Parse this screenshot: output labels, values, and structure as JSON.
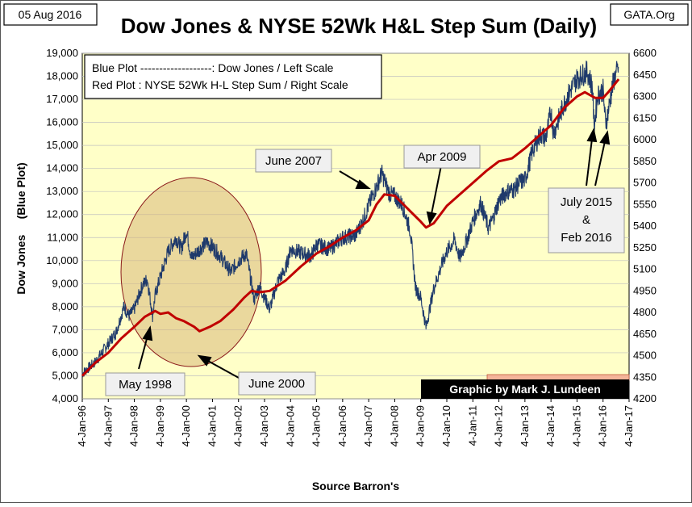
{
  "header": {
    "date": "05 Aug 2016",
    "title": "Dow Jones & NYSE 52Wk H&L Step Sum (Daily)",
    "source_site": "GATA.Org"
  },
  "legend": {
    "line1": "Blue Plot -------------------:  Dow Jones / Left Scale",
    "line2": "Red Plot : NYSE 52Wk H-L Step Sum / Right Scale"
  },
  "credit": "Graphic by Mark J. Lundeen",
  "annotations": {
    "may1998": "May 1998",
    "june2000": "June 2000",
    "june2007": "June 2007",
    "apr2009": "Apr 2009",
    "july2015_l1": "July 2015",
    "july2015_l2": "&",
    "july2015_l3": "Feb 2016"
  },
  "colors": {
    "plot_bg": "#ffffc8",
    "grid": "#c0c0c0",
    "dow_blue": "#1f3a6b",
    "step_red": "#c00000",
    "circle_fill": "#d8b87a",
    "credit_bg": "#000000",
    "credit_text": "#ffffff"
  },
  "chart_data": {
    "type": "line",
    "xlabel": "Source Barron's",
    "ylabel": "Dow Jones     (Blue Plot)",
    "ylim": [
      4000,
      19000
    ],
    "y2lim": [
      4200,
      6600
    ],
    "x_range": [
      "1996-01-04",
      "2017-01-04"
    ],
    "grid": true,
    "legend_position": "top-left",
    "y_ticks": [
      "4,000",
      "5,000",
      "6,000",
      "7,000",
      "8,000",
      "9,000",
      "10,000",
      "11,000",
      "12,000",
      "13,000",
      "14,000",
      "15,000",
      "16,000",
      "17,000",
      "18,000",
      "19,000"
    ],
    "y2_ticks": [
      "4200",
      "4350",
      "4500",
      "4650",
      "4800",
      "4950",
      "5100",
      "5250",
      "5400",
      "5550",
      "5700",
      "5850",
      "6000",
      "6150",
      "6300",
      "6450",
      "6600"
    ],
    "x_ticks": [
      "4-Jan-96",
      "4-Jan-97",
      "4-Jan-98",
      "4-Jan-99",
      "4-Jan-00",
      "4-Jan-01",
      "4-Jan-02",
      "4-Jan-03",
      "4-Jan-04",
      "4-Jan-05",
      "4-Jan-06",
      "4-Jan-07",
      "4-Jan-08",
      "4-Jan-09",
      "4-Jan-10",
      "4-Jan-11",
      "4-Jan-12",
      "4-Jan-13",
      "4-Jan-14",
      "4-Jan-15",
      "4-Jan-16",
      "4-Jan-17"
    ],
    "series": [
      {
        "name": "Dow Jones",
        "axis": "left",
        "x": [
          1996.0,
          1996.5,
          1997.0,
          1997.3,
          1997.6,
          1997.8,
          1998.0,
          1998.3,
          1998.5,
          1998.7,
          1998.8,
          1999.0,
          1999.3,
          1999.6,
          1999.8,
          2000.0,
          2000.2,
          2000.5,
          2000.8,
          2001.0,
          2001.3,
          2001.7,
          2002.0,
          2002.3,
          2002.6,
          2002.8,
          2003.0,
          2003.2,
          2003.5,
          2003.8,
          2004.0,
          2004.5,
          2004.8,
          2005.0,
          2005.5,
          2006.0,
          2006.5,
          2006.8,
          2007.0,
          2007.3,
          2007.5,
          2007.8,
          2008.0,
          2008.3,
          2008.6,
          2008.8,
          2009.0,
          2009.2,
          2009.5,
          2009.8,
          2010.0,
          2010.3,
          2010.5,
          2010.8,
          2011.0,
          2011.3,
          2011.6,
          2011.8,
          2012.0,
          2012.3,
          2012.6,
          2012.8,
          2013.0,
          2013.3,
          2013.6,
          2013.8,
          2014.0,
          2014.1,
          2014.5,
          2014.8,
          2015.0,
          2015.4,
          2015.6,
          2015.65,
          2015.8,
          2016.0,
          2016.1,
          2016.2,
          2016.4,
          2016.6
        ],
        "y": [
          5100,
          5600,
          6400,
          6900,
          8000,
          7600,
          7900,
          8900,
          9200,
          7600,
          8500,
          9300,
          10400,
          11000,
          10500,
          11300,
          10100,
          10500,
          10800,
          10600,
          10200,
          9500,
          10000,
          10300,
          8300,
          8900,
          8400,
          7900,
          9100,
          9600,
          10500,
          10300,
          10200,
          10700,
          10500,
          11000,
          11100,
          11800,
          12400,
          13200,
          13800,
          12900,
          12800,
          12400,
          11300,
          8800,
          8400,
          7100,
          8800,
          9800,
          10400,
          10900,
          10100,
          11000,
          11700,
          12500,
          11400,
          11900,
          12600,
          13000,
          13100,
          13400,
          13500,
          14800,
          15500,
          15300,
          16500,
          15500,
          16800,
          17500,
          17900,
          18200,
          17500,
          15800,
          17200,
          17400,
          15900,
          16500,
          17800,
          18400
        ]
      },
      {
        "name": "NYSE 52Wk H-L Step Sum",
        "axis": "right",
        "x": [
          1996.0,
          1996.5,
          1997.0,
          1997.5,
          1998.0,
          1998.4,
          1998.8,
          1999.0,
          1999.3,
          1999.6,
          1999.9,
          2000.3,
          2000.5,
          2000.9,
          2001.3,
          2001.8,
          2002.2,
          2002.5,
          2002.8,
          2003.2,
          2003.8,
          2004.4,
          2005.0,
          2005.5,
          2006.0,
          2006.5,
          2007.0,
          2007.3,
          2007.6,
          2008.0,
          2008.5,
          2009.0,
          2009.2,
          2009.5,
          2010.0,
          2010.5,
          2011.0,
          2011.5,
          2012.0,
          2012.5,
          2013.0,
          2013.5,
          2014.0,
          2014.5,
          2015.0,
          2015.3,
          2015.7,
          2016.0,
          2016.2,
          2016.6
        ],
        "y": [
          4360,
          4450,
          4520,
          4620,
          4700,
          4770,
          4810,
          4790,
          4800,
          4760,
          4740,
          4700,
          4670,
          4700,
          4740,
          4820,
          4900,
          4950,
          4940,
          4950,
          5020,
          5120,
          5210,
          5260,
          5320,
          5370,
          5440,
          5550,
          5620,
          5610,
          5520,
          5430,
          5390,
          5420,
          5540,
          5620,
          5700,
          5780,
          5850,
          5870,
          5940,
          6020,
          6100,
          6220,
          6300,
          6330,
          6290,
          6290,
          6330,
          6420
        ]
      }
    ]
  }
}
